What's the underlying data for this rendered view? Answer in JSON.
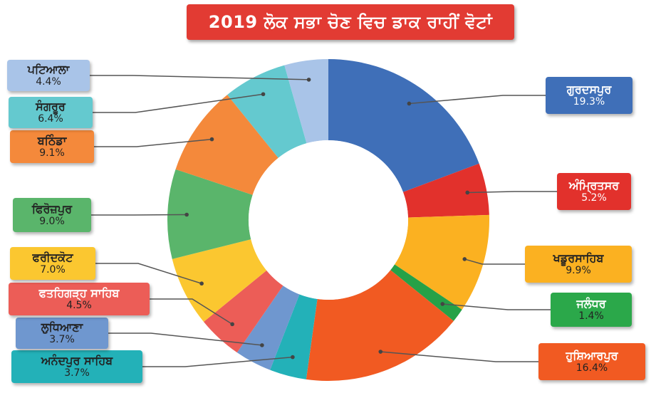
{
  "title": "2019 ਲੋਕ ਸਭਾ ਚੋਣ ਵਿਚ ਡਾਕ ਰਾਹੀਂ ਵੋਟਾਂ",
  "chart_data": {
    "type": "pie",
    "donut": true,
    "title": "2019 ਲੋਕ ਸਭਾ ਚੋਣ ਵਿਚ ਡਾਕ ਰਾਹੀਂ ਵੋਟਾਂ",
    "slices": [
      {
        "label": "ਗੁਰਦਸਪੁਰ",
        "value": 19.3,
        "display": "19.3%",
        "color": "#3f6fb8",
        "box_bg": "#3f6fb8",
        "name_color": "#ffffff",
        "pct_color": "#ffffff"
      },
      {
        "label": "ਅੰਮ੍ਰਿਤਸਰ",
        "value": 5.2,
        "display": "5.2%",
        "color": "#e2312c",
        "box_bg": "#e2312c",
        "name_color": "#ffffff",
        "pct_color": "#ffffff"
      },
      {
        "label": "ਖਡੂਰਸਾਹਿਬ",
        "value": 9.9,
        "display": "9.9%",
        "color": "#fbb121",
        "box_bg": "#fbb121",
        "name_color": "#222222",
        "pct_color": "#222222"
      },
      {
        "label": "ਜਲੰਧਰ",
        "value": 1.4,
        "display": "1.4%",
        "color": "#26a147",
        "box_bg": "#2ba84a",
        "name_color": "#ffffff",
        "pct_color": "#222222"
      },
      {
        "label": "ਹੁਸ਼ਿਆਰਪੁਰ",
        "value": 16.4,
        "display": "16.4%",
        "color": "#f15a22",
        "box_bg": "#f15a22",
        "name_color": "#ffffff",
        "pct_color": "#222222"
      },
      {
        "label": "ਅਨੰਦਪੁਰ ਸਾਹਿਬ",
        "value": 3.7,
        "display": "3.7%",
        "color": "#23b1b8",
        "box_bg": "#23b1b8",
        "name_color": "#222222",
        "pct_color": "#222222"
      },
      {
        "label": "ਲੁਧਿਆਣਾ",
        "value": 3.7,
        "display": "3.7%",
        "color": "#6f97cf",
        "box_bg": "#6f97cf",
        "name_color": "#222222",
        "pct_color": "#222222"
      },
      {
        "label": "ਫਤਹਿਗੜ੍ਹ ਸਾਹਿਬ",
        "value": 4.5,
        "display": "4.5%",
        "color": "#ec5d57",
        "box_bg": "#ec5d57",
        "name_color": "#ffffff",
        "pct_color": "#222222"
      },
      {
        "label": "ਫਰੀਦਕੋਟ",
        "value": 7.0,
        "display": "7.0%",
        "color": "#fbc730",
        "box_bg": "#fbc730",
        "name_color": "#222222",
        "pct_color": "#222222"
      },
      {
        "label": "ਫਿਰੋਜ਼ਪੁਰ",
        "value": 9.0,
        "display": "9.0%",
        "color": "#5ab56b",
        "box_bg": "#5ab56b",
        "name_color": "#222222",
        "pct_color": "#222222"
      },
      {
        "label": "ਬਠਿੰਡਾ",
        "value": 9.1,
        "display": "9.1%",
        "color": "#f4893b",
        "box_bg": "#f4893b",
        "name_color": "#222222",
        "pct_color": "#222222"
      },
      {
        "label": "ਸੰਗਰੂਰ",
        "value": 6.4,
        "display": "6.4%",
        "color": "#64c9cf",
        "box_bg": "#64c9cf",
        "name_color": "#222222",
        "pct_color": "#222222"
      },
      {
        "label": "ਪਟਿਆਲਾ",
        "value": 4.4,
        "display": "4.4%",
        "color": "#a9c4e8",
        "box_bg": "#a9c4e8",
        "name_color": "#222222",
        "pct_color": "#222222"
      }
    ]
  }
}
